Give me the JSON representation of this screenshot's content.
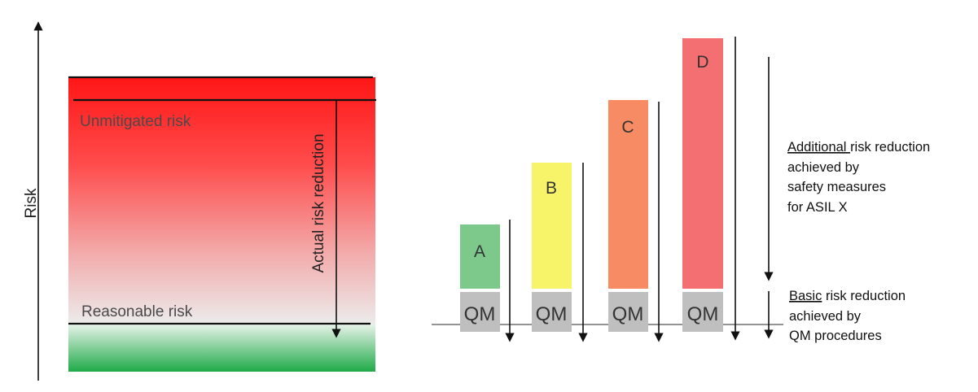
{
  "left_panel": {
    "y_axis_label": "Risk",
    "unmitigated_label": "Unmitigated risk",
    "reasonable_label": "Reasonable risk",
    "reduction_label": "Actual risk reduction"
  },
  "right_panel": {
    "bars": [
      {
        "letter": "A",
        "base_label": "QM",
        "color": "#7dc98b"
      },
      {
        "letter": "B",
        "base_label": "QM",
        "color": "#f7f46a"
      },
      {
        "letter": "C",
        "base_label": "QM",
        "color": "#f78b63"
      },
      {
        "letter": "D",
        "base_label": "QM",
        "color": "#f46f71"
      }
    ],
    "additional": {
      "underlined": "Additional ",
      "lines": [
        "risk reduction",
        "achieved by",
        "safety measures",
        "for ASIL X"
      ]
    },
    "basic": {
      "underlined": "Basic",
      "lines": [
        " risk reduction",
        "achieved by",
        "QM procedures"
      ]
    }
  },
  "colors": {
    "axis": "#1f2a6e",
    "qm_box": "#bfbfbf",
    "risk_top": "#ff1a1a",
    "safe_green": "#22b14c"
  }
}
